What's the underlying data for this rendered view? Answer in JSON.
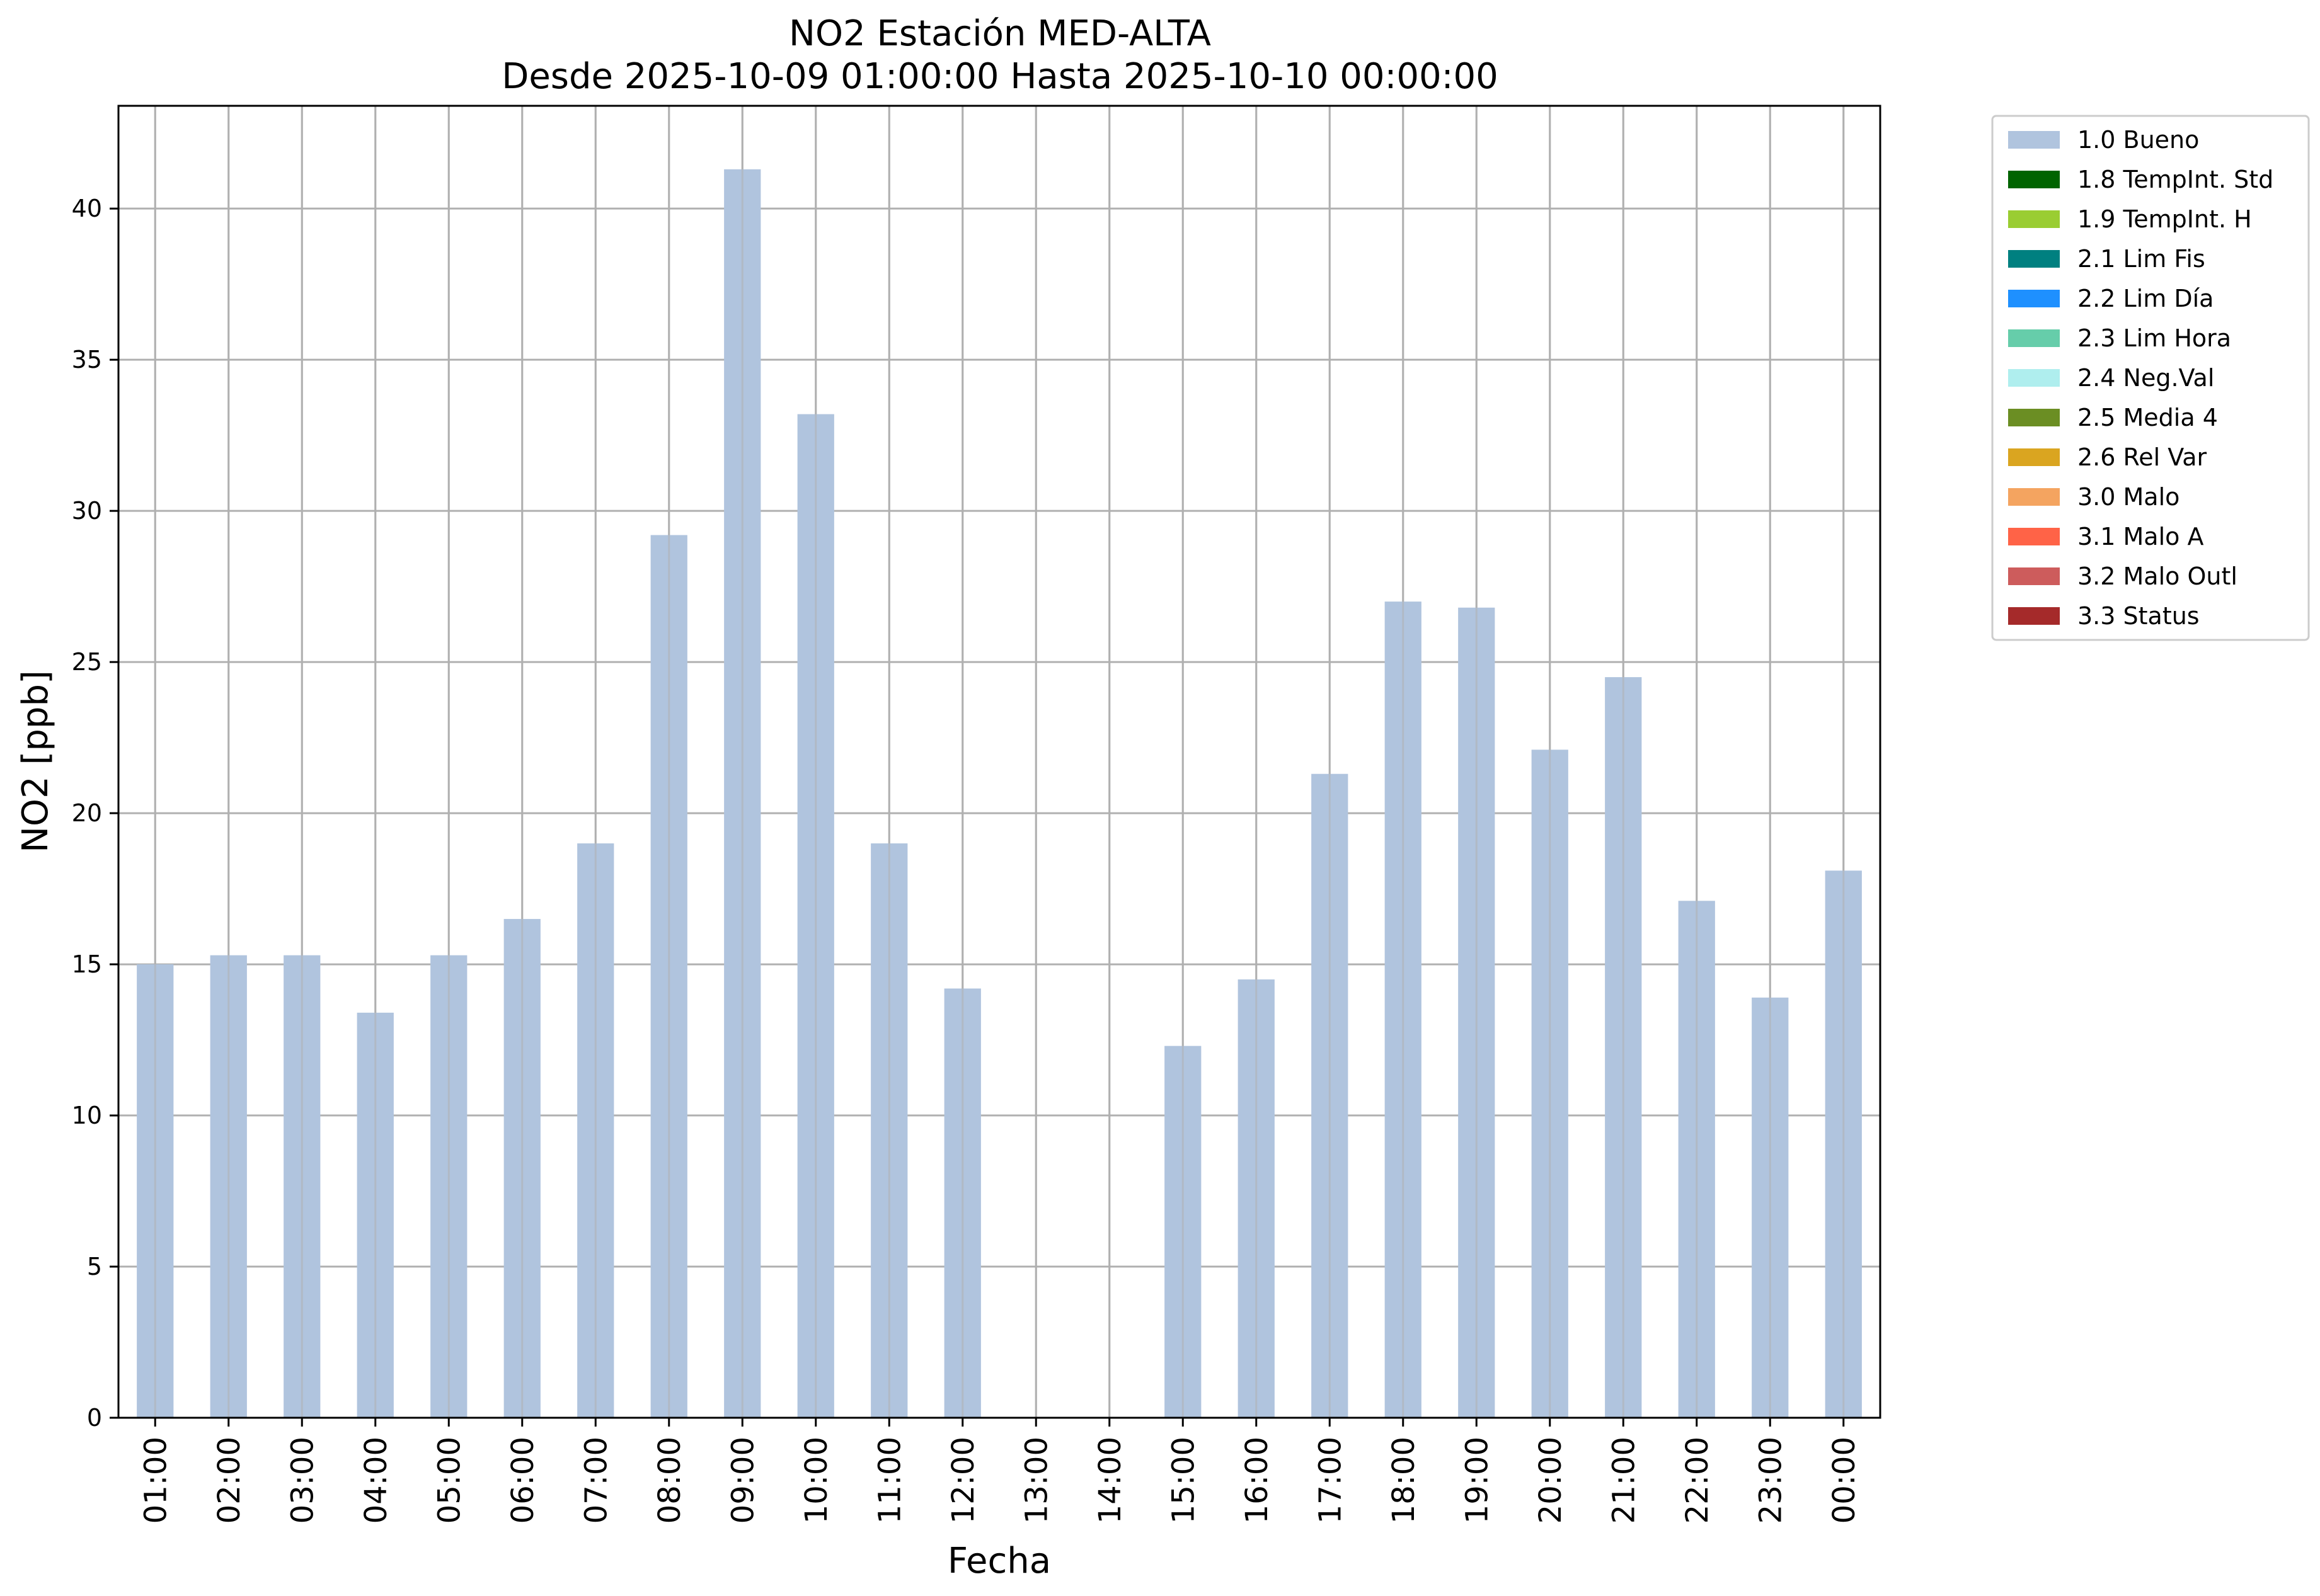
{
  "chart_data": {
    "type": "bar",
    "title": "NO2 Estación MED-ALTA",
    "subtitle": "Desde 2025-10-09 01:00:00 Hasta 2025-10-10 00:00:00",
    "xlabel": "Fecha",
    "ylabel": "NO2 [ppb]",
    "ylim": [
      0,
      43.4
    ],
    "yticks": [
      0,
      5,
      10,
      15,
      20,
      25,
      30,
      35,
      40
    ],
    "grid": true,
    "legend_position": "outside-top-right",
    "categories": [
      "01:00",
      "02:00",
      "03:00",
      "04:00",
      "05:00",
      "06:00",
      "07:00",
      "08:00",
      "09:00",
      "10:00",
      "11:00",
      "12:00",
      "13:00",
      "14:00",
      "15:00",
      "16:00",
      "17:00",
      "18:00",
      "19:00",
      "20:00",
      "21:00",
      "22:00",
      "23:00",
      "00:00"
    ],
    "series": [
      {
        "name": "1.0 Bueno",
        "color": "#b0c4de",
        "values": [
          15.0,
          15.3,
          15.3,
          13.4,
          15.3,
          16.5,
          19.0,
          29.2,
          41.3,
          33.2,
          19.0,
          14.2,
          null,
          null,
          12.3,
          14.5,
          21.3,
          27.0,
          26.8,
          22.1,
          24.5,
          17.1,
          13.9,
          18.1
        ]
      }
    ],
    "legend": [
      {
        "label": "1.0 Bueno",
        "color": "#b0c4de"
      },
      {
        "label": "1.8 TempInt. Std",
        "color": "#006400"
      },
      {
        "label": "1.9 TempInt. H",
        "color": "#9acd32"
      },
      {
        "label": "2.1 Lim Fis",
        "color": "#008080"
      },
      {
        "label": "2.2 Lim Día",
        "color": "#1e90ff"
      },
      {
        "label": "2.3 Lim Hora",
        "color": "#66cdaa"
      },
      {
        "label": "2.4 Neg.Val",
        "color": "#afeeee"
      },
      {
        "label": "2.5 Media 4",
        "color": "#6b8e23"
      },
      {
        "label": "2.6 Rel Var",
        "color": "#daa520"
      },
      {
        "label": "3.0 Malo",
        "color": "#f4a460"
      },
      {
        "label": "3.1 Malo A",
        "color": "#ff6347"
      },
      {
        "label": "3.2 Malo Outl",
        "color": "#cd5c5c"
      },
      {
        "label": "3.3 Status",
        "color": "#a52a2a"
      }
    ]
  }
}
